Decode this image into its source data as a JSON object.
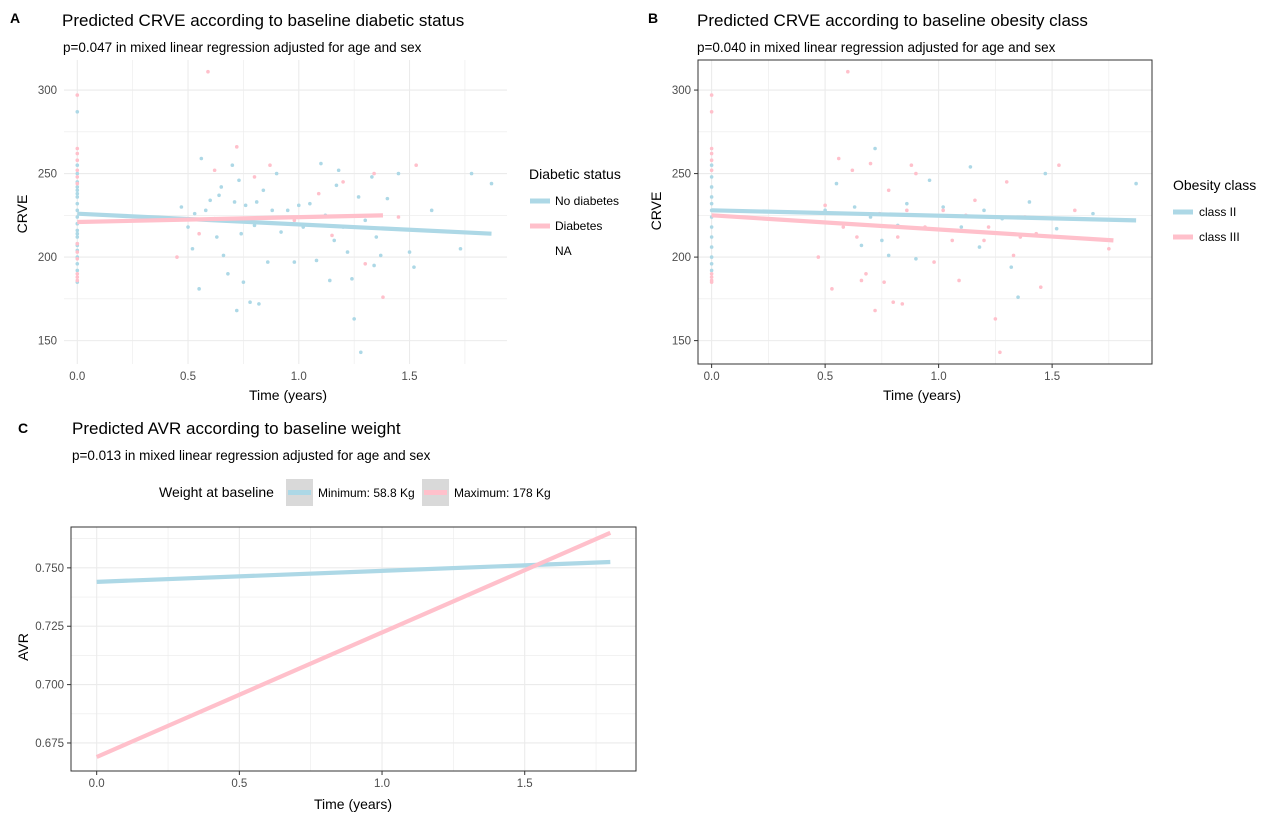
{
  "panels": {
    "A": {
      "tag": "A",
      "title": "Predicted CRVE according to baseline diabetic status",
      "subtitle": "p=0.047 in mixed linear regression adjusted for age and sex",
      "xlabel": "Time (years)",
      "ylabel": "CRVE"
    },
    "B": {
      "tag": "B",
      "title": "Predicted CRVE according to baseline obesity class",
      "subtitle": "p=0.040 in mixed linear regression adjusted for age and sex",
      "xlabel": "Time (years)",
      "ylabel": "CRVE"
    },
    "C": {
      "tag": "C",
      "title": "Predicted AVR according to baseline weight",
      "subtitle": "p=0.013 in mixed linear regression adjusted for age and sex",
      "xlabel": "Time (years)",
      "ylabel": "AVR"
    }
  },
  "legends": {
    "A": {
      "title": "Diabetic status",
      "items": [
        "No diabetes",
        "Diabetes",
        "NA"
      ]
    },
    "B": {
      "title": "Obesity class",
      "items": [
        "class II",
        "class III"
      ]
    },
    "C": {
      "title": "Weight at baseline",
      "items": [
        "Minimum: 58.8 Kg",
        "Maximum: 178 Kg"
      ]
    }
  },
  "colors": {
    "blue": "#add8e6",
    "pink": "#ffc0cb",
    "grid": "#ebebeb",
    "frame": "#333333",
    "legend_key_bg": "#d9d9d9"
  },
  "chart_data": [
    {
      "type": "scatter",
      "panel": "A",
      "xlabel": "Time (years)",
      "ylabel": "CRVE",
      "xlim": [
        -0.06,
        1.94
      ],
      "ylim": [
        136,
        318
      ],
      "xticks": [
        0.0,
        0.5,
        1.0,
        1.5
      ],
      "xtick_labels": [
        "0.0",
        "0.5",
        "1.0",
        "1.5"
      ],
      "yticks": [
        150,
        200,
        250,
        300
      ],
      "ytick_labels": [
        "150",
        "200",
        "250",
        "300"
      ],
      "grid": true,
      "legend": "right",
      "lines": [
        {
          "name": "No diabetes",
          "color": "#add8e6",
          "x": [
            0.0,
            1.87
          ],
          "y": [
            226,
            214
          ]
        },
        {
          "name": "Diabetes",
          "color": "#ffc0cb",
          "x": [
            0.0,
            1.38
          ],
          "y": [
            221,
            225
          ]
        }
      ],
      "points": [
        {
          "group": "No diabetes",
          "color": "#add8e6",
          "x": [
            0,
            0,
            0,
            0,
            0,
            0,
            0,
            0,
            0,
            0,
            0,
            0,
            0,
            0,
            0,
            0,
            0,
            0,
            0,
            0,
            0,
            0,
            0.47,
            0.5,
            0.52,
            0.55,
            0.56,
            0.58,
            0.6,
            0.62,
            0.63,
            0.65,
            0.66,
            0.68,
            0.69,
            0.7,
            0.71,
            0.72,
            0.73,
            0.75,
            0.76,
            0.78,
            0.8,
            0.82,
            0.84,
            0.86,
            0.88,
            0.9,
            0.92,
            0.95,
            0.98,
            1.0,
            1.02,
            1.05,
            1.08,
            1.1,
            1.12,
            1.14,
            1.16,
            1.18,
            1.2,
            1.22,
            1.24,
            1.25,
            1.27,
            1.28,
            1.3,
            1.33,
            1.35,
            1.37,
            1.4,
            1.45,
            1.5,
            1.52,
            1.6,
            1.73,
            1.78,
            1.87,
            0.53,
            0.64,
            0.74,
            0.81,
            1.17,
            1.34
          ],
          "y": [
            287,
            255,
            245,
            240,
            236,
            232,
            228,
            224,
            220,
            216,
            212,
            208,
            204,
            200,
            196,
            192,
            250,
            242,
            238,
            214,
            207,
            185,
            230,
            218,
            205,
            181,
            259,
            228,
            234,
            223,
            212,
            242,
            201,
            190,
            223,
            255,
            233,
            168,
            246,
            185,
            231,
            173,
            219,
            172,
            240,
            197,
            228,
            250,
            215,
            228,
            197,
            231,
            218,
            232,
            198,
            256,
            225,
            186,
            210,
            252,
            218,
            203,
            187,
            163,
            236,
            143,
            222,
            248,
            212,
            201,
            235,
            250,
            203,
            194,
            228,
            205,
            250,
            244,
            226,
            237,
            214,
            233,
            243,
            195
          ]
        },
        {
          "group": "Diabetes",
          "color": "#ffc0cb",
          "x": [
            0,
            0,
            0,
            0,
            0,
            0,
            0,
            0,
            0,
            0,
            0,
            0,
            0,
            0.45,
            0.55,
            0.59,
            0.62,
            0.67,
            0.72,
            0.8,
            0.87,
            0.98,
            1.09,
            1.15,
            1.2,
            1.3,
            1.34,
            1.38,
            1.45,
            1.53
          ],
          "y": [
            297,
            265,
            262,
            258,
            252,
            248,
            244,
            190,
            188,
            186,
            208,
            203,
            199,
            200,
            214,
            311,
            252,
            222,
            266,
            248,
            255,
            222,
            238,
            213,
            245,
            196,
            250,
            176,
            224,
            255
          ]
        }
      ]
    },
    {
      "type": "scatter",
      "panel": "B",
      "xlabel": "Time (years)",
      "ylabel": "CRVE",
      "xlim": [
        -0.06,
        1.94
      ],
      "ylim": [
        136,
        318
      ],
      "xticks": [
        0.0,
        0.5,
        1.0,
        1.5
      ],
      "xtick_labels": [
        "0.0",
        "0.5",
        "1.0",
        "1.5"
      ],
      "yticks": [
        150,
        200,
        250,
        300
      ],
      "ytick_labels": [
        "150",
        "200",
        "250",
        "300"
      ],
      "grid": true,
      "legend": "right",
      "lines": [
        {
          "name": "class II",
          "color": "#add8e6",
          "x": [
            0.0,
            1.87
          ],
          "y": [
            228,
            222
          ]
        },
        {
          "name": "class III",
          "color": "#ffc0cb",
          "x": [
            0.0,
            1.77
          ],
          "y": [
            225,
            210
          ]
        }
      ],
      "points": [
        {
          "group": "class II",
          "color": "#add8e6",
          "x": [
            0,
            0,
            0,
            0,
            0,
            0,
            0,
            0,
            0,
            0,
            0,
            0,
            0,
            0.5,
            0.55,
            0.63,
            0.66,
            0.7,
            0.72,
            0.75,
            0.78,
            0.82,
            0.86,
            0.9,
            0.96,
            1.02,
            1.1,
            1.14,
            1.18,
            1.2,
            1.28,
            1.32,
            1.35,
            1.4,
            1.47,
            1.52,
            1.68,
            1.87
          ],
          "y": [
            255,
            248,
            242,
            236,
            232,
            228,
            224,
            218,
            212,
            206,
            200,
            196,
            192,
            228,
            244,
            230,
            207,
            224,
            265,
            210,
            201,
            219,
            232,
            199,
            246,
            230,
            218,
            254,
            206,
            228,
            223,
            194,
            176,
            233,
            250,
            217,
            226,
            244
          ]
        },
        {
          "group": "class III",
          "color": "#ffc0cb",
          "x": [
            0,
            0,
            0,
            0,
            0,
            0,
            0,
            0,
            0,
            0,
            0.47,
            0.5,
            0.53,
            0.56,
            0.58,
            0.6,
            0.62,
            0.64,
            0.66,
            0.68,
            0.7,
            0.72,
            0.74,
            0.76,
            0.78,
            0.8,
            0.82,
            0.84,
            0.86,
            0.88,
            0.9,
            0.94,
            0.98,
            1.02,
            1.06,
            1.09,
            1.12,
            1.16,
            1.2,
            1.22,
            1.25,
            1.27,
            1.3,
            1.33,
            1.36,
            1.38,
            1.43,
            1.45,
            1.5,
            1.53,
            1.6,
            1.75
          ],
          "y": [
            297,
            287,
            265,
            262,
            258,
            252,
            190,
            188,
            186,
            185,
            200,
            231,
            181,
            259,
            218,
            311,
            252,
            212,
            186,
            190,
            256,
            168,
            226,
            185,
            240,
            173,
            212,
            172,
            228,
            255,
            250,
            218,
            197,
            228,
            210,
            186,
            225,
            234,
            210,
            218,
            163,
            143,
            245,
            201,
            212,
            224,
            214,
            182,
            223,
            255,
            228,
            205
          ]
        }
      ]
    },
    {
      "type": "line",
      "panel": "C",
      "xlabel": "Time (years)",
      "ylabel": "AVR",
      "xlim": [
        -0.09,
        1.89
      ],
      "ylim": [
        0.663,
        0.7675
      ],
      "xticks": [
        0.0,
        0.5,
        1.0,
        1.5
      ],
      "xtick_labels": [
        "0.0",
        "0.5",
        "1.0",
        "1.5"
      ],
      "yticks": [
        0.675,
        0.7,
        0.725,
        0.75
      ],
      "ytick_labels": [
        "0.675",
        "0.700",
        "0.725",
        "0.750"
      ],
      "grid": true,
      "legend": "top",
      "series": [
        {
          "name": "Minimum: 58.8 Kg",
          "color": "#add8e6",
          "x": [
            0.0,
            1.8
          ],
          "y": [
            0.744,
            0.7525
          ]
        },
        {
          "name": "Maximum: 178 Kg",
          "color": "#ffc0cb",
          "x": [
            0.0,
            1.8
          ],
          "y": [
            0.669,
            0.765
          ]
        }
      ]
    }
  ]
}
